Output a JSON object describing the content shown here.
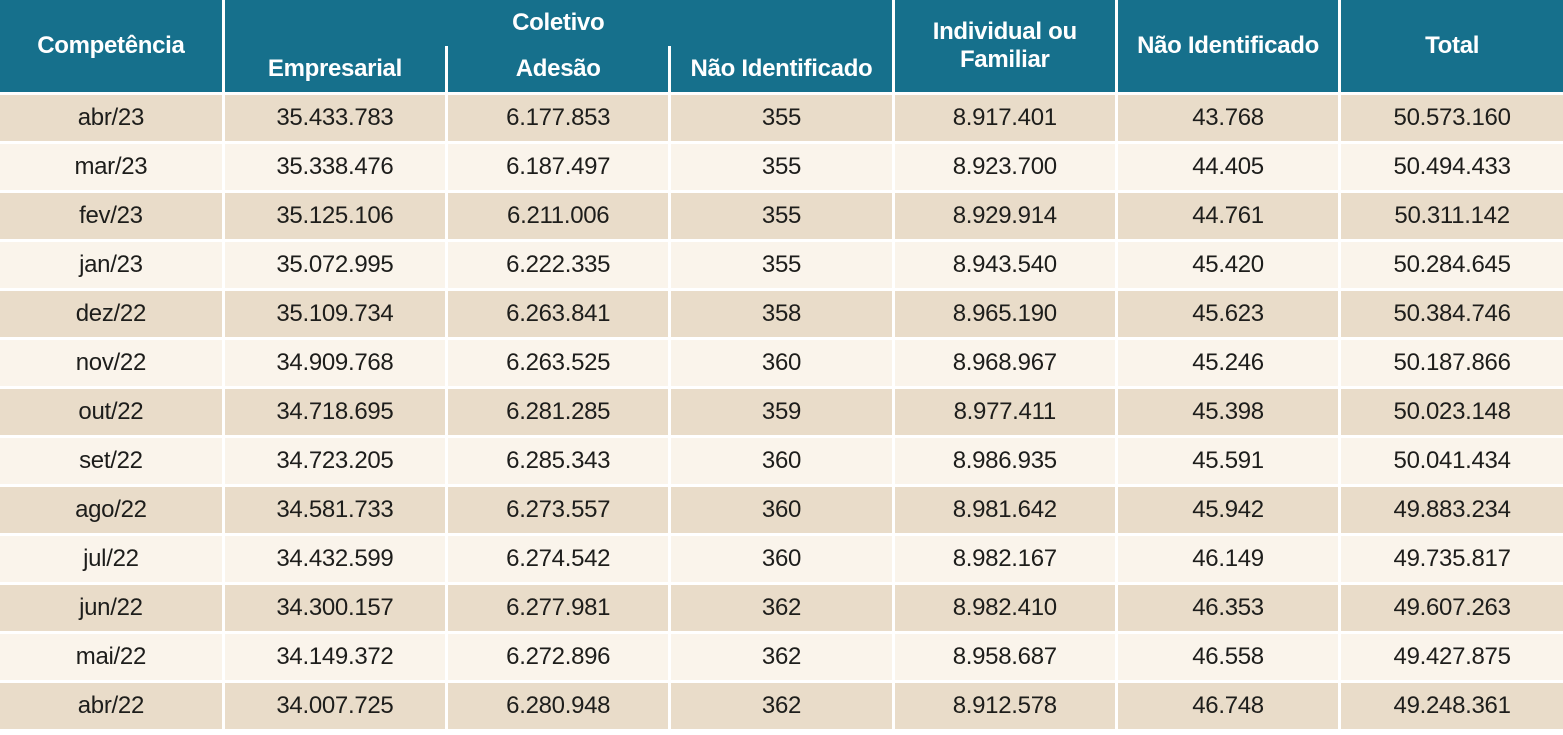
{
  "colors": {
    "header_bg": "#16708c",
    "header_text": "#ffffff",
    "row_beige": "#e9dcc9",
    "row_cream": "#faf4eb",
    "separator": "#ffffff",
    "cell_text": "#1d1d1b"
  },
  "chart_data": {
    "type": "table",
    "column_groups": [
      {
        "label": "Competência",
        "span": 1
      },
      {
        "label": "Coletivo",
        "span": 3
      },
      {
        "label": "Individual ou Familiar",
        "span": 1
      },
      {
        "label": "Não Identificado",
        "span": 1
      },
      {
        "label": "Total",
        "span": 1
      }
    ],
    "columns": [
      "Competência",
      "Empresarial",
      "Adesão",
      "Não Identificado",
      "Individual ou Familiar",
      "Não Identificado",
      "Total"
    ],
    "rows": [
      [
        "abr/23",
        "35.433.783",
        "6.177.853",
        "355",
        "8.917.401",
        "43.768",
        "50.573.160"
      ],
      [
        "mar/23",
        "35.338.476",
        "6.187.497",
        "355",
        "8.923.700",
        "44.405",
        "50.494.433"
      ],
      [
        "fev/23",
        "35.125.106",
        "6.211.006",
        "355",
        "8.929.914",
        "44.761",
        "50.311.142"
      ],
      [
        "jan/23",
        "35.072.995",
        "6.222.335",
        "355",
        "8.943.540",
        "45.420",
        "50.284.645"
      ],
      [
        "dez/22",
        "35.109.734",
        "6.263.841",
        "358",
        "8.965.190",
        "45.623",
        "50.384.746"
      ],
      [
        "nov/22",
        "34.909.768",
        "6.263.525",
        "360",
        "8.968.967",
        "45.246",
        "50.187.866"
      ],
      [
        "out/22",
        "34.718.695",
        "6.281.285",
        "359",
        "8.977.411",
        "45.398",
        "50.023.148"
      ],
      [
        "set/22",
        "34.723.205",
        "6.285.343",
        "360",
        "8.986.935",
        "45.591",
        "50.041.434"
      ],
      [
        "ago/22",
        "34.581.733",
        "6.273.557",
        "360",
        "8.981.642",
        "45.942",
        "49.883.234"
      ],
      [
        "jul/22",
        "34.432.599",
        "6.274.542",
        "360",
        "8.982.167",
        "46.149",
        "49.735.817"
      ],
      [
        "jun/22",
        "34.300.157",
        "6.277.981",
        "362",
        "8.982.410",
        "46.353",
        "49.607.263"
      ],
      [
        "mai/22",
        "34.149.372",
        "6.272.896",
        "362",
        "8.958.687",
        "46.558",
        "49.427.875"
      ],
      [
        "abr/22",
        "34.007.725",
        "6.280.948",
        "362",
        "8.912.578",
        "46.748",
        "49.248.361"
      ]
    ]
  }
}
